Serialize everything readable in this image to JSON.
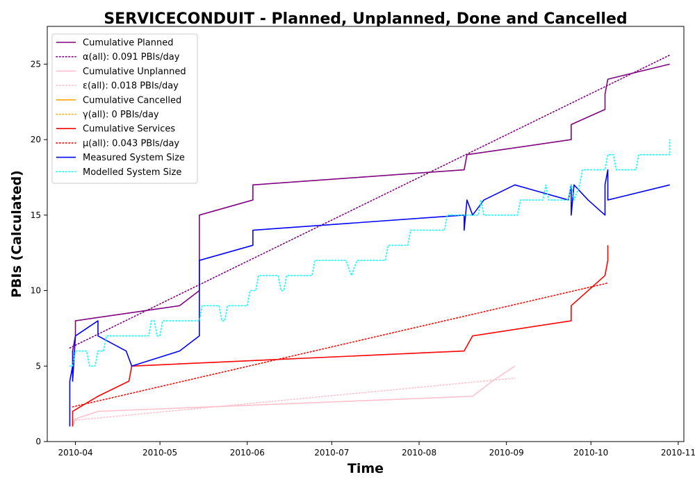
{
  "chart_data": {
    "type": "line",
    "title": "SERVICECONDUIT - Planned, Unplanned, Done  and Cancelled",
    "xlabel": "Time",
    "ylabel": "PBIs (Calculated)",
    "xlim": [
      "2010-03-22",
      "2010-11-03"
    ],
    "ylim": [
      0,
      27.5
    ],
    "x_ticks": [
      "2010-04",
      "2010-05",
      "2010-06",
      "2010-07",
      "2010-08",
      "2010-09",
      "2010-10",
      "2010-11"
    ],
    "y_ticks": [
      0,
      5,
      10,
      15,
      20,
      25
    ],
    "grid": false,
    "legend_position": "upper-left",
    "series": [
      {
        "name": "Cumulative Planned",
        "color": "#800080",
        "style": "solid",
        "points": [
          [
            "2010-03-31",
            6
          ],
          [
            "2010-04-01",
            7
          ],
          [
            "2010-04-01",
            8
          ],
          [
            "2010-05-08",
            9
          ],
          [
            "2010-05-15",
            10
          ],
          [
            "2010-05-15",
            15
          ],
          [
            "2010-06-03",
            16
          ],
          [
            "2010-06-03",
            17
          ],
          [
            "2010-08-17",
            18
          ],
          [
            "2010-08-18",
            19
          ],
          [
            "2010-09-24",
            20
          ],
          [
            "2010-09-24",
            21
          ],
          [
            "2010-10-06",
            22
          ],
          [
            "2010-10-06",
            23
          ],
          [
            "2010-10-07",
            24
          ],
          [
            "2010-10-29",
            25
          ]
        ]
      },
      {
        "name": "α(all): 0.091 PBIs/day",
        "color": "#800080",
        "style": "dotted",
        "points": [
          [
            "2010-03-30",
            6.2
          ],
          [
            "2010-10-29",
            25.6
          ]
        ]
      },
      {
        "name": "Cumulative Unplanned",
        "color": "#ffc0cb",
        "style": "solid",
        "points": [
          [
            "2010-03-31",
            1
          ],
          [
            "2010-04-01",
            1.5
          ],
          [
            "2010-04-09",
            2
          ],
          [
            "2010-08-20",
            3
          ],
          [
            "2010-08-27",
            4
          ],
          [
            "2010-09-04",
            5
          ]
        ]
      },
      {
        "name": "ε(all): 0.018 PBIs/day",
        "color": "#ffc0cb",
        "style": "dotted",
        "points": [
          [
            "2010-03-31",
            1.4
          ],
          [
            "2010-09-04",
            4.2
          ]
        ]
      },
      {
        "name": "Cumulative Cancelled",
        "color": "#ffa500",
        "style": "solid",
        "points": []
      },
      {
        "name": "γ(all): 0 PBIs/day",
        "color": "#ffa500",
        "style": "dotted",
        "points": []
      },
      {
        "name": "Cumulative Services",
        "color": "#ff0000",
        "style": "solid",
        "points": [
          [
            "2010-03-31",
            1
          ],
          [
            "2010-03-31",
            2
          ],
          [
            "2010-04-09",
            3
          ],
          [
            "2010-04-20",
            4
          ],
          [
            "2010-04-21",
            5
          ],
          [
            "2010-08-17",
            6
          ],
          [
            "2010-08-20",
            7
          ],
          [
            "2010-09-24",
            8
          ],
          [
            "2010-09-24",
            9
          ],
          [
            "2010-09-30",
            10
          ],
          [
            "2010-10-06",
            11
          ],
          [
            "2010-10-07",
            12
          ],
          [
            "2010-10-07",
            13
          ]
        ]
      },
      {
        "name": "μ(all): 0.043 PBIs/day",
        "color": "#ff0000",
        "style": "dotted",
        "points": [
          [
            "2010-03-31",
            2.3
          ],
          [
            "2010-10-07",
            10.5
          ]
        ]
      },
      {
        "name": "Measured System Size",
        "color": "#0000ff",
        "style": "solid",
        "points": [
          [
            "2010-03-30",
            1
          ],
          [
            "2010-03-30",
            4
          ],
          [
            "2010-03-31",
            5
          ],
          [
            "2010-03-31",
            6
          ],
          [
            "2010-03-31",
            4
          ],
          [
            "2010-04-01",
            7
          ],
          [
            "2010-04-09",
            8
          ],
          [
            "2010-04-09",
            7
          ],
          [
            "2010-04-19",
            6
          ],
          [
            "2010-04-21",
            5
          ],
          [
            "2010-05-08",
            6
          ],
          [
            "2010-05-15",
            7
          ],
          [
            "2010-05-15",
            12
          ],
          [
            "2010-06-03",
            13
          ],
          [
            "2010-06-03",
            14
          ],
          [
            "2010-08-17",
            15
          ],
          [
            "2010-08-17",
            14
          ],
          [
            "2010-08-18",
            16
          ],
          [
            "2010-08-20",
            15
          ],
          [
            "2010-08-24",
            16
          ],
          [
            "2010-09-04",
            17
          ],
          [
            "2010-09-23",
            16
          ],
          [
            "2010-09-24",
            17
          ],
          [
            "2010-09-24",
            15
          ],
          [
            "2010-09-25",
            17
          ],
          [
            "2010-09-30",
            16
          ],
          [
            "2010-10-06",
            15
          ],
          [
            "2010-10-06",
            17
          ],
          [
            "2010-10-07",
            18
          ],
          [
            "2010-10-07",
            16
          ],
          [
            "2010-10-29",
            17
          ]
        ]
      },
      {
        "name": "Modelled System Size",
        "color": "#00ffff",
        "style": "dotted",
        "points": [
          [
            "2010-03-30",
            5
          ],
          [
            "2010-03-31",
            5
          ],
          [
            "2010-04-01",
            6
          ],
          [
            "2010-04-05",
            6
          ],
          [
            "2010-04-06",
            5
          ],
          [
            "2010-04-08",
            5
          ],
          [
            "2010-04-09",
            6
          ],
          [
            "2010-04-11",
            6
          ],
          [
            "2010-04-12",
            7
          ],
          [
            "2010-04-27",
            7
          ],
          [
            "2010-04-28",
            8
          ],
          [
            "2010-04-29",
            8
          ],
          [
            "2010-04-30",
            7
          ],
          [
            "2010-05-01",
            7
          ],
          [
            "2010-05-02",
            8
          ],
          [
            "2010-05-15",
            8
          ],
          [
            "2010-05-16",
            9
          ],
          [
            "2010-05-22",
            9
          ],
          [
            "2010-05-23",
            8
          ],
          [
            "2010-05-24",
            8
          ],
          [
            "2010-05-25",
            9
          ],
          [
            "2010-06-01",
            9
          ],
          [
            "2010-06-02",
            10
          ],
          [
            "2010-06-04",
            10
          ],
          [
            "2010-06-05",
            11
          ],
          [
            "2010-06-12",
            11
          ],
          [
            "2010-06-13",
            10
          ],
          [
            "2010-06-14",
            10
          ],
          [
            "2010-06-15",
            11
          ],
          [
            "2010-06-24",
            11
          ],
          [
            "2010-06-25",
            12
          ],
          [
            "2010-07-06",
            12
          ],
          [
            "2010-07-08",
            11
          ],
          [
            "2010-07-10",
            12
          ],
          [
            "2010-07-16",
            12
          ],
          [
            "2010-07-20",
            12
          ],
          [
            "2010-07-21",
            13
          ],
          [
            "2010-07-28",
            13
          ],
          [
            "2010-07-29",
            14
          ],
          [
            "2010-08-10",
            14
          ],
          [
            "2010-08-11",
            15
          ],
          [
            "2010-08-22",
            15
          ],
          [
            "2010-08-23",
            16
          ],
          [
            "2010-08-24",
            15
          ],
          [
            "2010-08-26",
            15
          ],
          [
            "2010-09-05",
            15
          ],
          [
            "2010-09-06",
            16
          ],
          [
            "2010-09-14",
            16
          ],
          [
            "2010-09-15",
            17
          ],
          [
            "2010-09-16",
            16
          ],
          [
            "2010-09-23",
            16
          ],
          [
            "2010-09-24",
            17
          ],
          [
            "2010-09-25",
            16
          ],
          [
            "2010-09-27",
            17
          ],
          [
            "2010-09-28",
            18
          ],
          [
            "2010-10-06",
            18
          ],
          [
            "2010-10-07",
            19
          ],
          [
            "2010-10-09",
            19
          ],
          [
            "2010-10-10",
            18
          ],
          [
            "2010-10-17",
            18
          ],
          [
            "2010-10-18",
            19
          ],
          [
            "2010-10-29",
            19
          ],
          [
            "2010-10-29",
            20
          ]
        ]
      }
    ]
  }
}
